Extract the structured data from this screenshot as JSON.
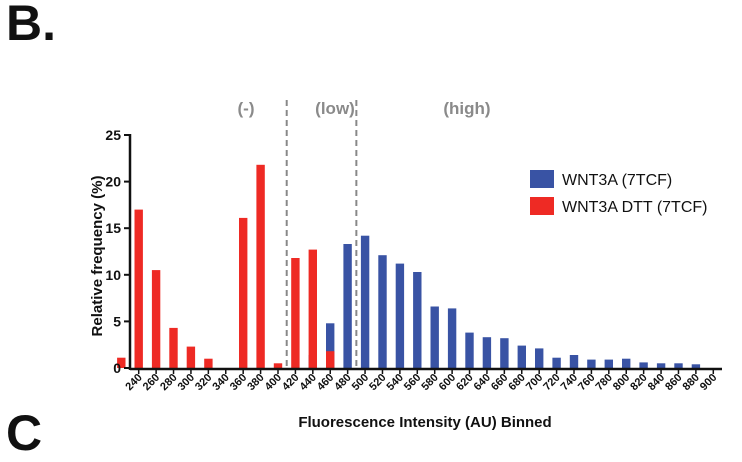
{
  "panel": {
    "label": "B.",
    "next_label": "C"
  },
  "chart_data": {
    "type": "bar",
    "title": "",
    "xlabel": "Fluorescence Intensity (AU) Binned",
    "ylabel": "Relative frequency (%)",
    "ylim": [
      0,
      25
    ],
    "yticks": [
      0,
      5,
      10,
      15,
      20,
      25
    ],
    "categories": [
      "240",
      "260",
      "280",
      "300",
      "320",
      "340",
      "360",
      "380",
      "400",
      "420",
      "440",
      "460",
      "480",
      "500",
      "520",
      "540",
      "560",
      "580",
      "600",
      "620",
      "640",
      "660",
      "680",
      "700",
      "720",
      "740",
      "760",
      "780",
      "800",
      "820",
      "840",
      "860",
      "880",
      "900"
    ],
    "series": [
      {
        "name": "WNT3A (7TCF)",
        "color": "#3953a4",
        "values": [
          0,
          0,
          0,
          0,
          0,
          0,
          0,
          0,
          0,
          0,
          1.4,
          4.8,
          13.3,
          14.2,
          12.1,
          11.2,
          10.3,
          6.6,
          6.4,
          3.8,
          3.3,
          3.2,
          2.4,
          2.1,
          1.1,
          1.4,
          0.9,
          0.9,
          1.0,
          0.6,
          0.5,
          0.5,
          0.4,
          0
        ]
      },
      {
        "name": "WNT3A DTT (7TCF)",
        "color": "#ee2a24",
        "values": [
          1.1,
          17.0,
          10.5,
          4.3,
          2.3,
          1.0,
          0,
          16.1,
          21.8,
          0.5,
          11.8,
          12.7,
          1.8,
          0,
          0,
          0,
          0,
          0,
          0,
          0,
          0,
          0,
          0,
          0,
          0,
          0,
          0,
          0,
          0,
          0,
          0,
          0,
          0,
          0
        ]
      }
    ],
    "regions": [
      {
        "label": "(-)"
      },
      {
        "label": "(low)"
      },
      {
        "label": "(high)"
      }
    ],
    "dividers_at": [
      "420",
      "500"
    ],
    "legend_position": "right",
    "grid": false
  }
}
